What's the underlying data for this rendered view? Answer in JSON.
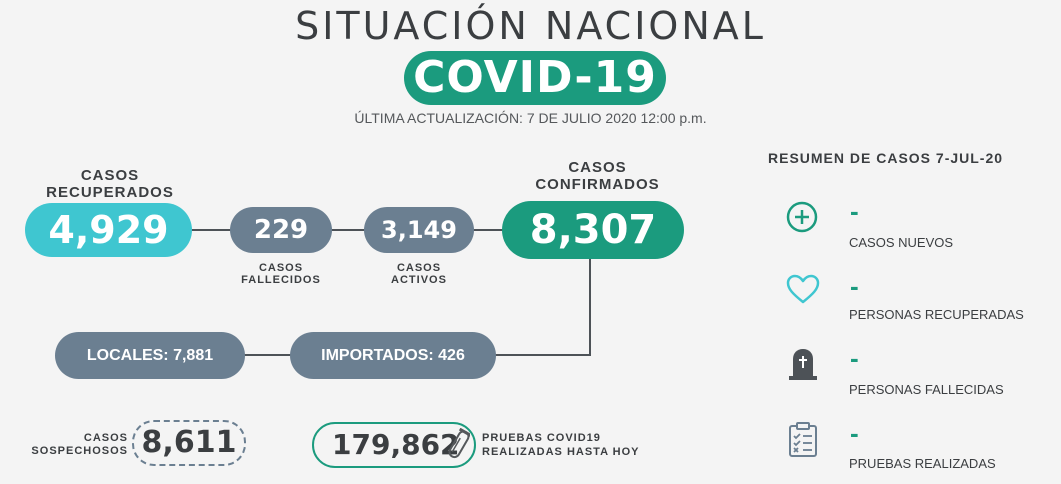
{
  "header": {
    "title": "SITUACIÓN NACIONAL",
    "badge": "COVID-19",
    "updated": "ÚLTIMA ACTUALIZACIÓN: 7 DE JULIO 2020 12:00 p.m."
  },
  "stats": {
    "recuperados": {
      "label_line1": "CASOS",
      "label_line2": "RECUPERADOS",
      "value": "4,929"
    },
    "fallecidos": {
      "label_line1": "CASOS",
      "label_line2": "FALLECIDOS",
      "value": "229"
    },
    "activos": {
      "label_line1": "CASOS",
      "label_line2": "ACTIVOS",
      "value": "3,149"
    },
    "confirmados": {
      "label_line1": "CASOS",
      "label_line2": "CONFIRMADOS",
      "value": "8,307"
    },
    "locales": "LOCALES: 7,881",
    "importados": "IMPORTADOS: 426",
    "sospechosos": {
      "label_line1": "CASOS",
      "label_line2": "SOSPECHOSOS",
      "value": "8,611"
    },
    "pruebas": {
      "value": "179,862",
      "label_line1": "PRUEBAS COVID19",
      "label_line2": "REALIZADAS HASTA HOY"
    }
  },
  "summary": {
    "title": "RESUMEN DE CASOS 7-JUL-20",
    "items": [
      {
        "icon": "plus-circle-icon",
        "value": "-",
        "label": "CASOS NUEVOS"
      },
      {
        "icon": "heart-icon",
        "value": "-",
        "label": "PERSONAS RECUPERADAS"
      },
      {
        "icon": "tombstone-icon",
        "value": "-",
        "label": "PERSONAS FALLECIDAS"
      },
      {
        "icon": "clipboard-checklist-icon",
        "value": "-",
        "label": "PRUEBAS REALIZADAS"
      }
    ]
  },
  "colors": {
    "green": "#1b9b7e",
    "cyan": "#3fc6d0",
    "slate": "#6b7f91",
    "text": "#3b3e41"
  }
}
